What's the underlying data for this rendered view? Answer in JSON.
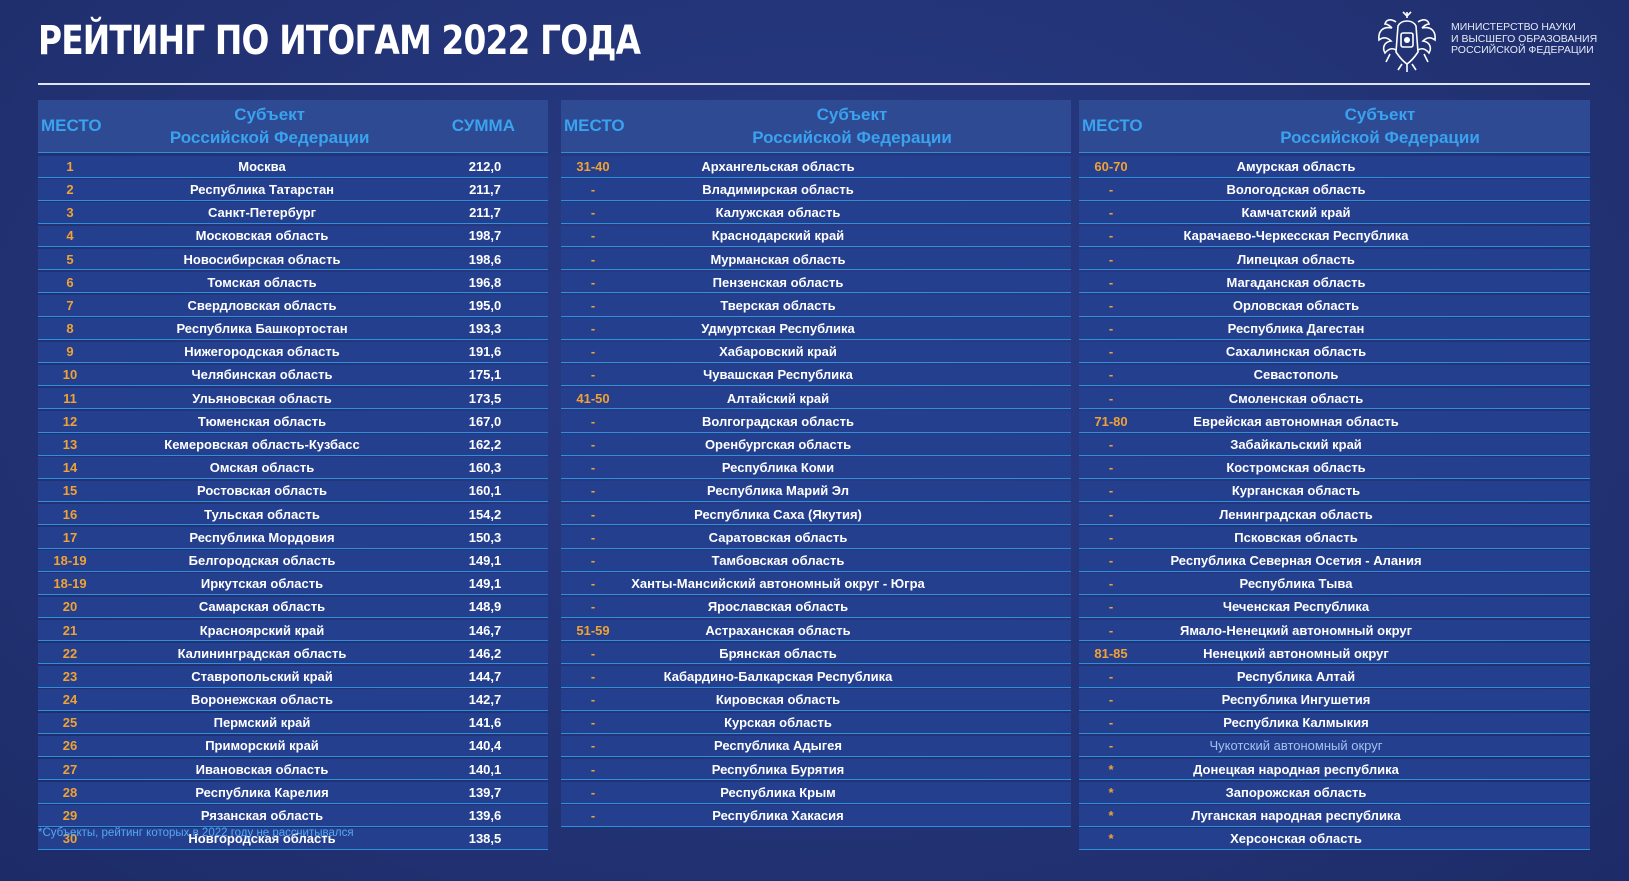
{
  "header": {
    "title": "РЕЙТИНГ ПО ИТОГАМ 2022 ГОДА",
    "ministry_lines": [
      "МИНИСТЕРСТВО НАУКИ",
      "И ВЫСШЕГО ОБРАЗОВАНИЯ",
      "РОССИЙСКОЙ ФЕДЕРАЦИИ"
    ],
    "emblem_icon": "double-headed-eagle-emblem"
  },
  "columns": {
    "place": "МЕСТО",
    "subject_line1": "Субъект",
    "subject_line2": "Российской Федерации",
    "sum": "СУММА"
  },
  "colors": {
    "background": "#24357a",
    "header_text": "#3aa2ee",
    "place_text": "#f0a235",
    "row_bg": "#243f8e",
    "row_border": "#2e8fdb"
  },
  "table1": [
    {
      "place": "1",
      "subject": "Москва",
      "sum": "212,0"
    },
    {
      "place": "2",
      "subject": "Республика Татарстан",
      "sum": "211,7"
    },
    {
      "place": "3",
      "subject": "Санкт-Петербург",
      "sum": "211,7"
    },
    {
      "place": "4",
      "subject": "Московская область",
      "sum": "198,7"
    },
    {
      "place": "5",
      "subject": "Новосибирская область",
      "sum": "198,6"
    },
    {
      "place": "6",
      "subject": "Томская область",
      "sum": "196,8"
    },
    {
      "place": "7",
      "subject": "Свердловская область",
      "sum": "195,0"
    },
    {
      "place": "8",
      "subject": "Республика Башкортостан",
      "sum": "193,3"
    },
    {
      "place": "9",
      "subject": "Нижегородская область",
      "sum": "191,6"
    },
    {
      "place": "10",
      "subject": "Челябинская область",
      "sum": "175,1"
    },
    {
      "place": "11",
      "subject": "Ульяновская область",
      "sum": "173,5"
    },
    {
      "place": "12",
      "subject": "Тюменская область",
      "sum": "167,0"
    },
    {
      "place": "13",
      "subject": "Кемеровская область-Кузбасс",
      "sum": "162,2"
    },
    {
      "place": "14",
      "subject": "Омская область",
      "sum": "160,3"
    },
    {
      "place": "15",
      "subject": "Ростовская область",
      "sum": "160,1"
    },
    {
      "place": "16",
      "subject": "Тульская область",
      "sum": "154,2"
    },
    {
      "place": "17",
      "subject": "Республика Мордовия",
      "sum": "150,3"
    },
    {
      "place": "18-19",
      "subject": "Белгородская область",
      "sum": "149,1"
    },
    {
      "place": "18-19",
      "subject": "Иркутская область",
      "sum": "149,1"
    },
    {
      "place": "20",
      "subject": "Самарская область",
      "sum": "148,9"
    },
    {
      "place": "21",
      "subject": "Красноярский край",
      "sum": "146,7"
    },
    {
      "place": "22",
      "subject": "Калининградская область",
      "sum": "146,2"
    },
    {
      "place": "23",
      "subject": "Ставропольский край",
      "sum": "144,7"
    },
    {
      "place": "24",
      "subject": "Воронежская область",
      "sum": "142,7"
    },
    {
      "place": "25",
      "subject": "Пермский край",
      "sum": "141,6"
    },
    {
      "place": "26",
      "subject": "Приморский край",
      "sum": "140,4"
    },
    {
      "place": "27",
      "subject": "Ивановская область",
      "sum": "140,1"
    },
    {
      "place": "28",
      "subject": "Республика Карелия",
      "sum": "139,7"
    },
    {
      "place": "29",
      "subject": "Рязанская область",
      "sum": "139,6"
    },
    {
      "place": "30",
      "subject": "Новгородская область",
      "sum": "138,5"
    }
  ],
  "table2": [
    {
      "place": "31-40",
      "subject": "Архангельская область"
    },
    {
      "place": "-",
      "subject": "Владимирская область"
    },
    {
      "place": "-",
      "subject": "Калужская область"
    },
    {
      "place": "-",
      "subject": "Краснодарский край"
    },
    {
      "place": "-",
      "subject": "Мурманская область"
    },
    {
      "place": "-",
      "subject": "Пензенская область"
    },
    {
      "place": "-",
      "subject": "Тверская область"
    },
    {
      "place": "-",
      "subject": "Удмуртская Республика"
    },
    {
      "place": "-",
      "subject": "Хабаровский край"
    },
    {
      "place": "-",
      "subject": "Чувашская Республика"
    },
    {
      "place": "41-50",
      "subject": "Алтайский край"
    },
    {
      "place": "-",
      "subject": "Волгоградская область"
    },
    {
      "place": "-",
      "subject": "Оренбургская область"
    },
    {
      "place": "-",
      "subject": "Республика Коми"
    },
    {
      "place": "-",
      "subject": "Республика Марий Эл"
    },
    {
      "place": "-",
      "subject": "Республика Саха (Якутия)"
    },
    {
      "place": "-",
      "subject": "Саратовская область"
    },
    {
      "place": "-",
      "subject": "Тамбовская область"
    },
    {
      "place": "-",
      "subject": "Ханты-Мансийский автономный округ - Югра"
    },
    {
      "place": "-",
      "subject": "Ярославская область"
    },
    {
      "place": "51-59",
      "subject": "Астраханская область"
    },
    {
      "place": "-",
      "subject": "Брянская область"
    },
    {
      "place": "-",
      "subject": "Кабардино-Балкарская Республика"
    },
    {
      "place": "-",
      "subject": "Кировская область"
    },
    {
      "place": "-",
      "subject": "Курская область"
    },
    {
      "place": "-",
      "subject": "Республика Адыгея"
    },
    {
      "place": "-",
      "subject": "Республика Бурятия"
    },
    {
      "place": "-",
      "subject": "Республика Крым"
    },
    {
      "place": "-",
      "subject": "Республика Хакасия"
    }
  ],
  "table3": [
    {
      "place": "60-70",
      "subject": "Амурская область"
    },
    {
      "place": "-",
      "subject": "Вологодская область"
    },
    {
      "place": "-",
      "subject": "Камчатский край"
    },
    {
      "place": "-",
      "subject": "Карачаево-Черкесская Республика"
    },
    {
      "place": "-",
      "subject": "Липецкая область"
    },
    {
      "place": "-",
      "subject": "Магаданская область"
    },
    {
      "place": "-",
      "subject": "Орловская область"
    },
    {
      "place": "-",
      "subject": "Республика Дагестан"
    },
    {
      "place": "-",
      "subject": "Сахалинская область"
    },
    {
      "place": "-",
      "subject": "Севастополь"
    },
    {
      "place": "-",
      "subject": "Смоленская область"
    },
    {
      "place": "71-80",
      "subject": "Еврейская автономная область"
    },
    {
      "place": "-",
      "subject": "Забайкальский край"
    },
    {
      "place": "-",
      "subject": "Костромская область"
    },
    {
      "place": "-",
      "subject": "Курганская область"
    },
    {
      "place": "-",
      "subject": "Ленинградская область"
    },
    {
      "place": "-",
      "subject": "Псковская область"
    },
    {
      "place": "-",
      "subject": "Республика Северная Осетия - Алания"
    },
    {
      "place": "-",
      "subject": "Республика Тыва"
    },
    {
      "place": "-",
      "subject": "Чеченская Республика"
    },
    {
      "place": "-",
      "subject": "Ямало-Ненецкий автономный округ"
    },
    {
      "place": "81-85",
      "subject": "Ненецкий автономный округ"
    },
    {
      "place": "-",
      "subject": "Республика Алтай"
    },
    {
      "place": "-",
      "subject": "Республика Ингушетия"
    },
    {
      "place": "-",
      "subject": "Республика Калмыкия"
    },
    {
      "place": "-",
      "subject": "Чукотский автономный округ"
    },
    {
      "place": "*",
      "subject": "Донецкая народная республика"
    },
    {
      "place": "*",
      "subject": "Запорожская область"
    },
    {
      "place": "*",
      "subject": "Луганская народная республика"
    },
    {
      "place": "*",
      "subject": "Херсонская область"
    }
  ],
  "footnote": "*Субъекты, рейтинг которых в 2022 году не рассчитывался"
}
